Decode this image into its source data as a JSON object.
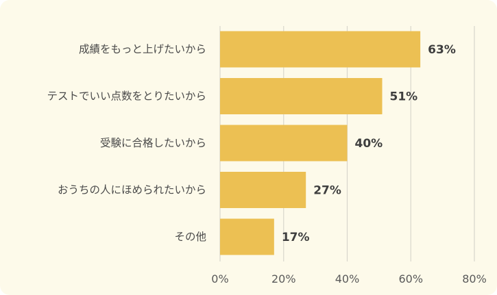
{
  "chart_data": {
    "type": "bar",
    "orientation": "horizontal",
    "title": "",
    "xlabel": "",
    "ylabel": "",
    "categories": [
      "成績をもっと上げたいから",
      "テストでいい点数をとりたいから",
      "受験に合格したいから",
      "おうちの人にほめられたいから",
      "その他"
    ],
    "values": [
      63,
      51,
      40,
      27,
      17
    ],
    "value_labels": [
      "63%",
      "51%",
      "40%",
      "27%",
      "17%"
    ],
    "xlim": [
      0,
      80
    ],
    "ticks": [
      0,
      20,
      40,
      60,
      80
    ],
    "tick_labels": [
      "0%",
      "20%",
      "40%",
      "60%",
      "80%"
    ],
    "grid": true,
    "legend": "none",
    "colors": {
      "bar": "#ecc053",
      "background": "#fdfaea",
      "grid": "#d8d6cc"
    }
  }
}
